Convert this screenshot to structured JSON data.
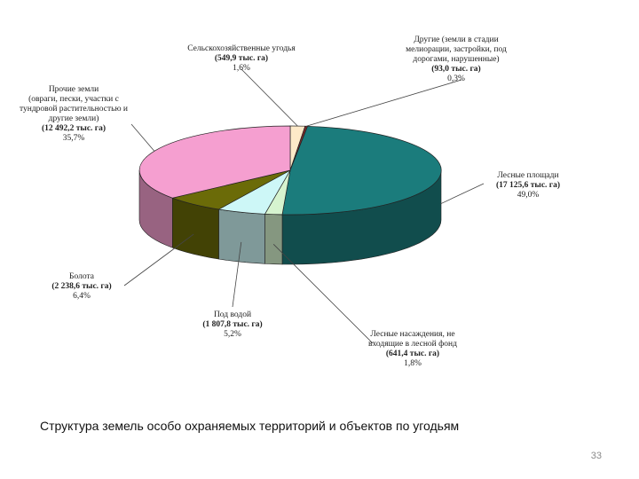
{
  "chart_data": {
    "type": "pie",
    "title": "",
    "slices": [
      {
        "label": "Сельскохозяйственные угодья",
        "value_text": "(549,9 тыс. га)",
        "value": 549.9,
        "percent": 1.6,
        "percent_text": "1,6%",
        "color": "#fde9c8"
      },
      {
        "label": "Другие (земли в стадии мелиорации, застройки, под дорогами, нарушенные)",
        "value_text": "(93,0 тыс. га)",
        "value": 93.0,
        "percent": 0.3,
        "percent_text": "0,3%",
        "color": "#7b2a2a"
      },
      {
        "label": "Лесные площади",
        "value_text": "(17 125,6 тыс. га)",
        "value": 17125.6,
        "percent": 49.0,
        "percent_text": "49,0%",
        "color": "#1b7c7c"
      },
      {
        "label": "Лесные насаждения, не входящие в лесной фонд",
        "value_text": "(641,4 тыс. га)",
        "value": 641.4,
        "percent": 1.8,
        "percent_text": "1,8%",
        "color": "#d6f3cf"
      },
      {
        "label": "Под водой",
        "value_text": "(1 807,8 тыс. га)",
        "value": 1807.8,
        "percent": 5.2,
        "percent_text": "5,2%",
        "color": "#cdf7f7"
      },
      {
        "label": "Болота",
        "value_text": "(2 238,6 тыс. га)",
        "value": 2238.6,
        "percent": 6.4,
        "percent_text": "6,4%",
        "color": "#6b6b08"
      },
      {
        "label": "Прочие земли (овраги, пески, участки с тундровой растительностью и другие земли)",
        "value_text": "(12 492,2 тыс. га)",
        "value": 12492.2,
        "percent": 35.7,
        "percent_text": "35,7%",
        "color": "#f59fd0"
      }
    ]
  },
  "labels": {
    "agri": {
      "l1": "Сельскохозяйственные угодья",
      "value": "(549,9 тыс. га)",
      "pct": "1,6%"
    },
    "other": {
      "l1": "Другие (земли в стадии",
      "l2": "мелиорации, застройки, под",
      "l3": "дорогами, нарушенные)",
      "value": "(93,0 тыс. га)",
      "pct": "0,3%"
    },
    "forest": {
      "l1": "Лесные площади",
      "value": "(17 125,6 тыс. га)",
      "pct": "49,0%"
    },
    "plant": {
      "l1": "Лесные насаждения, не",
      "l2": "входящие в лесной фонд",
      "value": "(641,4 тыс. га)",
      "pct": "1,8%"
    },
    "water": {
      "l1": "Под водой",
      "value": "(1 807,8 тыс. га)",
      "pct": "5,2%"
    },
    "swamp": {
      "l1": "Болота",
      "value": "(2 238,6 тыс. га)",
      "pct": "6,4%"
    },
    "misc": {
      "l1": "Прочие земли",
      "l2": "(овраги, пески, участки с",
      "l3": "тундровой растительностью и",
      "l4": "другие земли)",
      "value": "(12 492,2 тыс. га)",
      "pct": "35,7%"
    }
  },
  "caption": "Структура земель особо охраняемых территорий и объектов по угодьям",
  "page_number": "33"
}
